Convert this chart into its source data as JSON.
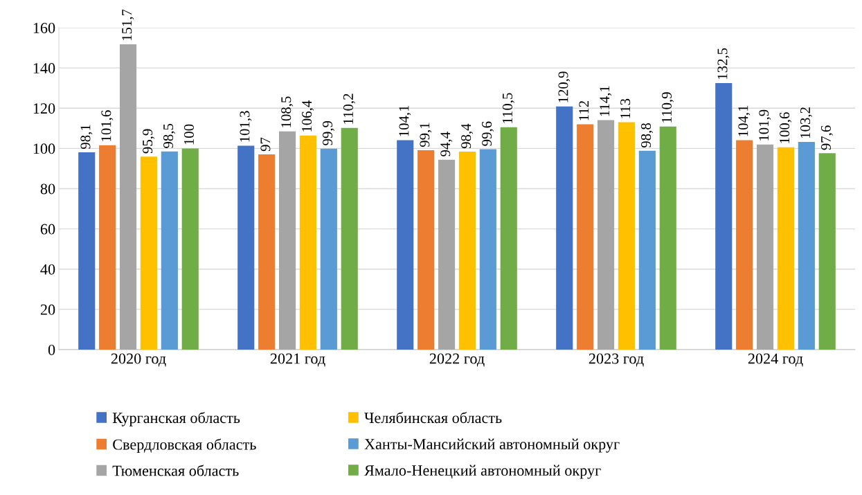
{
  "chart_data": {
    "type": "bar",
    "categories": [
      "2020 год",
      "2021 год",
      "2022 год",
      "2023 год",
      "2024 год"
    ],
    "series": [
      {
        "name": "Курганская область",
        "color": "#4472c4",
        "values": [
          98.1,
          101.3,
          104.1,
          120.9,
          132.5
        ],
        "value_labels": [
          "98,1",
          "101,3",
          "104,1",
          "120,9",
          "132,5"
        ]
      },
      {
        "name": "Свердловская область",
        "color": "#ed7d31",
        "values": [
          101.6,
          97,
          99.1,
          112,
          104.1
        ],
        "value_labels": [
          "101,6",
          "97",
          "99,1",
          "112",
          "104,1"
        ]
      },
      {
        "name": "Тюменская область",
        "color": "#a5a5a5",
        "values": [
          151.7,
          108.5,
          94.4,
          114.1,
          101.9
        ],
        "value_labels": [
          "151,7",
          "108,5",
          "94,4",
          "114,1",
          "101,9"
        ]
      },
      {
        "name": "Челябинская область",
        "color": "#ffc000",
        "values": [
          95.9,
          106.4,
          98.4,
          113,
          100.6
        ],
        "value_labels": [
          "95,9",
          "106,4",
          "98,4",
          "113",
          "100,6"
        ]
      },
      {
        "name": "Ханты-Мансийский автономный округ",
        "color": "#5b9bd5",
        "values": [
          98.5,
          99.9,
          99.6,
          98.8,
          103.2
        ],
        "value_labels": [
          "98,5",
          "99,9",
          "99,6",
          "98,8",
          "103,2"
        ]
      },
      {
        "name": "Ямало-Ненецкий автономный округ",
        "color": "#70ad47",
        "values": [
          100,
          110.2,
          110.5,
          110.9,
          97.6
        ],
        "value_labels": [
          "100",
          "110,2",
          "110,5",
          "110,9",
          "97,6"
        ]
      }
    ],
    "ylim": [
      0,
      160
    ],
    "yticks": [
      0,
      20,
      40,
      60,
      80,
      100,
      120,
      140,
      160
    ],
    "grid": "y",
    "legend": "bottom"
  }
}
